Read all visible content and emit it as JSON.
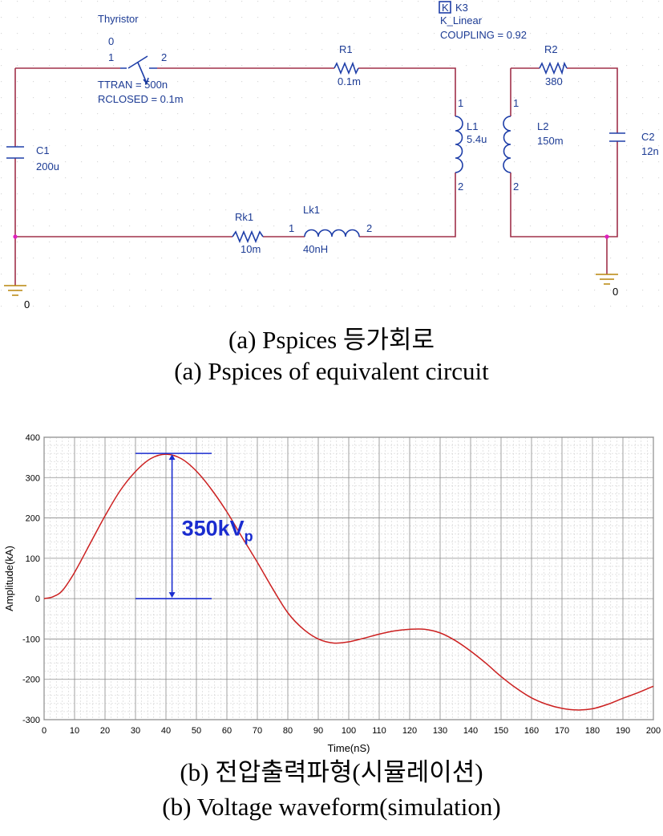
{
  "schematic": {
    "wire_color": "#a0304a",
    "part_color": "#1e3ea8",
    "text_color": "#1c3b94",
    "ground_color": "#b8860b",
    "thyristor": {
      "name": "Thyristor",
      "node_label": "0",
      "pin1": "1",
      "pin2": "2",
      "ttran": "TTRAN = 500n",
      "rclosed": "RCLOSED = 0.1m"
    },
    "r1": {
      "name": "R1",
      "value": "0.1m"
    },
    "r2": {
      "name": "R2",
      "value": "380"
    },
    "rk1": {
      "name": "Rk1",
      "value": "10m"
    },
    "lk1": {
      "name": "Lk1",
      "value": "40nH",
      "pin1": "1",
      "pin2": "2"
    },
    "l1": {
      "name": "L1",
      "value": "5.4u",
      "pin1": "1",
      "pin2": "2"
    },
    "l2": {
      "name": "L2",
      "value": "150m",
      "pin1": "2",
      "pin2": "1"
    },
    "c1": {
      "name": "C1",
      "value": "200u"
    },
    "c2": {
      "name": "C2",
      "value": "12n"
    },
    "k3": {
      "badge": "K",
      "name": "K3",
      "model": "K_Linear",
      "coupling": "COUPLING = 0.92"
    },
    "ground_left": "0",
    "ground_right": "0"
  },
  "captions": {
    "a_korean": "(a)  Pspices  등가회로",
    "a_english": "(a)  Pspices  of  equivalent  circuit",
    "b_korean": "(b)  전압출력파형(시뮬레이션)",
    "b_english": "(b)  Voltage  waveform(simulation)"
  },
  "chart_data": {
    "type": "line",
    "xlabel": "Time(nS)",
    "ylabel": "Amplitude(kA)",
    "xlim": [
      0,
      200
    ],
    "ylim": [
      -300,
      400
    ],
    "x_ticks": [
      0,
      10,
      20,
      30,
      40,
      50,
      60,
      70,
      80,
      90,
      100,
      110,
      120,
      130,
      140,
      150,
      160,
      170,
      180,
      190,
      200
    ],
    "y_ticks": [
      -300,
      -200,
      -100,
      0,
      100,
      200,
      300,
      400
    ],
    "grid": true,
    "line_color": "#cc2020",
    "annotation_color": "#1a2ccf",
    "series": [
      {
        "x": [
          0,
          3,
          6,
          10,
          15,
          20,
          25,
          30,
          35,
          40,
          45,
          50,
          55,
          60,
          65,
          70,
          75,
          80,
          85,
          90,
          95,
          100,
          105,
          110,
          115,
          120,
          125,
          130,
          135,
          140,
          145,
          150,
          155,
          160,
          165,
          170,
          175,
          180,
          185,
          190,
          195,
          200
        ],
        "y": [
          0,
          5,
          20,
          65,
          135,
          205,
          268,
          315,
          347,
          358,
          347,
          316,
          270,
          215,
          152,
          90,
          25,
          -35,
          -75,
          -100,
          -110,
          -107,
          -98,
          -88,
          -80,
          -76,
          -76,
          -85,
          -104,
          -130,
          -160,
          -193,
          -222,
          -246,
          -262,
          -272,
          -276,
          -273,
          -262,
          -247,
          -233,
          -217
        ]
      }
    ],
    "annotation": {
      "text": "350kV",
      "subscript": "p",
      "from_value": 0,
      "to_value": 360,
      "x_center": 42,
      "bar_x_range": [
        30,
        55
      ]
    }
  }
}
